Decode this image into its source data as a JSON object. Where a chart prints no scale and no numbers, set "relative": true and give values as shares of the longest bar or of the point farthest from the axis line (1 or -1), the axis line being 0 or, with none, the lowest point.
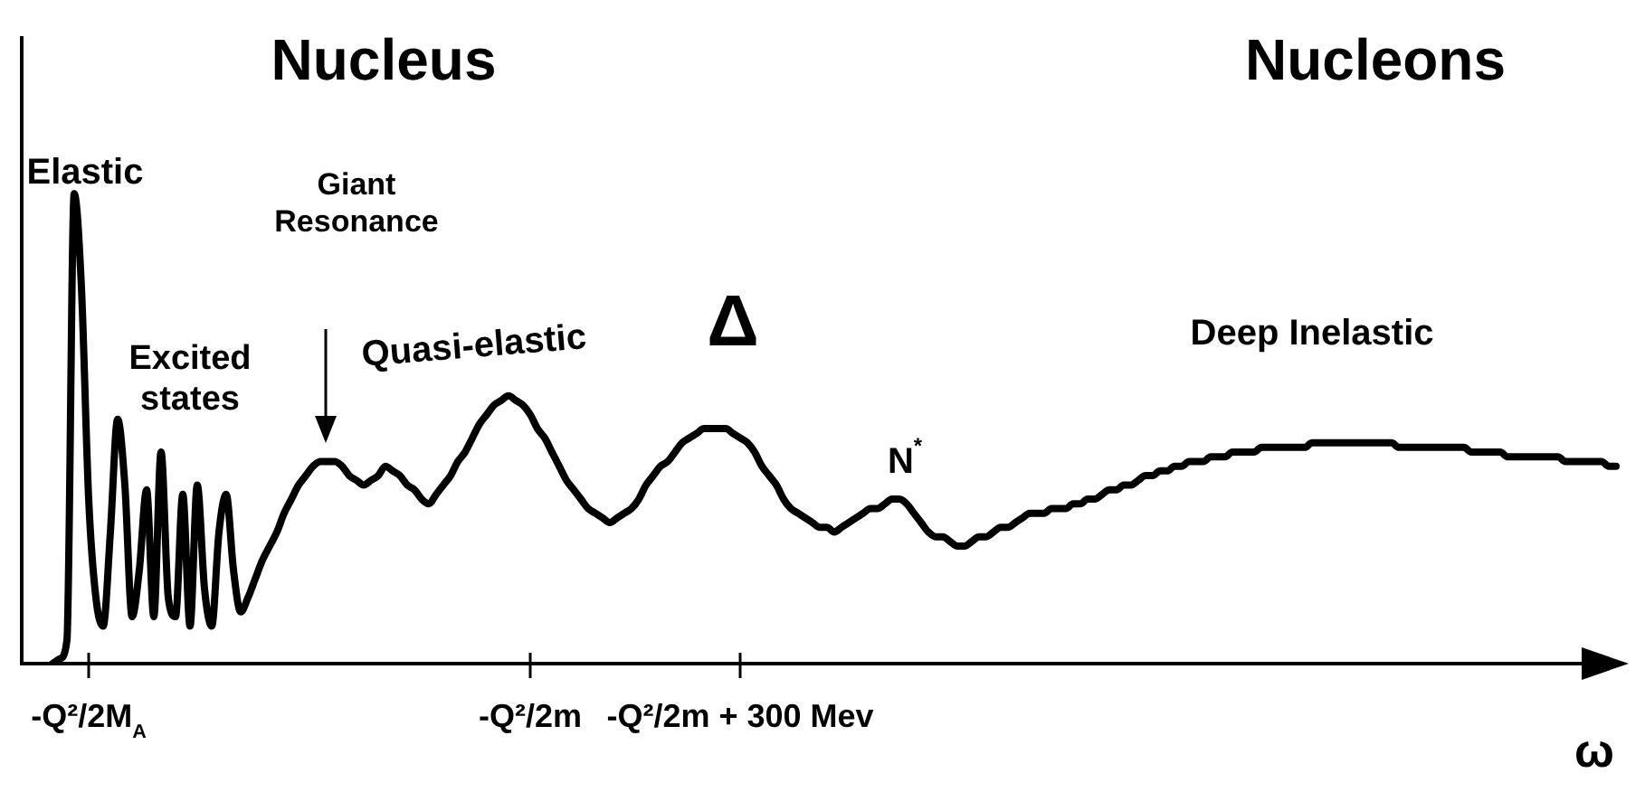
{
  "chart_data": {
    "type": "line",
    "relative": true,
    "color": "#000000",
    "marker": "none",
    "line_style": "solid",
    "tick_labels": "x",
    "xlabel": "ω",
    "categories": [
      null,
      null,
      null,
      null,
      null,
      "-Q²/2M$_{A}$",
      null,
      null,
      null,
      null,
      null,
      null,
      null,
      null,
      null,
      null,
      null,
      null,
      null,
      null,
      null,
      null,
      null,
      null,
      null,
      null,
      null,
      null,
      null,
      null,
      null,
      null,
      null,
      null,
      null,
      null,
      null,
      null,
      null,
      null,
      null,
      null,
      null,
      null,
      null,
      null,
      null,
      null,
      null,
      null,
      null,
      null,
      null,
      null,
      null,
      null,
      null,
      null,
      null,
      null,
      null,
      null,
      null,
      null,
      null,
      null,
      "-Q²/2m",
      null,
      null,
      null,
      null,
      null,
      null,
      null,
      null,
      null,
      null,
      null,
      null,
      null,
      null,
      null,
      null,
      null,
      null,
      null,
      null,
      null,
      null,
      null,
      null,
      null,
      null,
      null,
      null,
      "-Q²/2m + 300 Mev",
      null,
      null,
      null,
      null,
      null,
      null,
      null,
      null,
      null,
      null,
      null,
      null,
      null,
      null,
      null,
      null,
      null,
      null,
      null,
      null,
      null,
      null,
      null,
      null,
      null,
      null,
      null,
      null,
      null,
      null,
      null,
      null,
      null,
      null,
      null,
      null,
      null,
      null,
      null,
      null,
      null,
      null,
      null,
      null,
      null,
      null,
      null,
      null,
      null,
      null,
      null,
      null,
      null,
      null,
      null,
      null,
      null,
      null,
      null,
      null,
      null,
      null,
      null,
      null,
      null,
      null,
      null,
      null,
      null,
      null,
      null,
      null,
      null,
      null,
      null,
      null,
      null,
      null,
      null,
      null,
      null,
      null,
      null,
      null,
      null,
      null,
      null,
      null,
      null,
      null,
      null,
      null,
      null,
      null,
      null,
      null,
      null,
      null,
      null,
      null,
      null,
      null,
      null,
      null,
      null,
      null,
      null,
      null,
      null,
      null,
      null,
      null,
      null,
      null,
      null,
      null,
      null,
      null,
      null,
      null,
      null
    ],
    "values": [
      0,
      0.01,
      0.05,
      1,
      0.8,
      0.35,
      0.14,
      0.08,
      0.28,
      0.52,
      0.38,
      0.1,
      0.2,
      0.37,
      0.1,
      0.45,
      0.14,
      0.1,
      0.36,
      0.08,
      0.38,
      0.16,
      0.08,
      0.28,
      0.36,
      0.2,
      0.11,
      0.14,
      0.18,
      0.22,
      0.25,
      0.28,
      0.32,
      0.35,
      0.38,
      0.4,
      0.42,
      0.43,
      0.43,
      0.43,
      0.42,
      0.4,
      0.39,
      0.38,
      0.39,
      0.4,
      0.42,
      0.41,
      0.4,
      0.38,
      0.37,
      0.35,
      0.34,
      0.36,
      0.38,
      0.4,
      0.43,
      0.45,
      0.48,
      0.51,
      0.53,
      0.55,
      0.56,
      0.57,
      0.56,
      0.55,
      0.53,
      0.5,
      0.48,
      0.45,
      0.42,
      0.39,
      0.37,
      0.35,
      0.33,
      0.32,
      0.31,
      0.3,
      0.31,
      0.32,
      0.33,
      0.35,
      0.38,
      0.4,
      0.42,
      0.43,
      0.45,
      0.47,
      0.48,
      0.49,
      0.5,
      0.5,
      0.5,
      0.5,
      0.49,
      0.48,
      0.47,
      0.45,
      0.42,
      0.4,
      0.38,
      0.35,
      0.33,
      0.32,
      0.31,
      0.3,
      0.29,
      0.29,
      0.28,
      0.29,
      0.3,
      0.31,
      0.32,
      0.33,
      0.33,
      0.34,
      0.35,
      0.35,
      0.34,
      0.32,
      0.3,
      0.28,
      0.27,
      0.27,
      0.26,
      0.25,
      0.25,
      0.26,
      0.27,
      0.27,
      0.28,
      0.29,
      0.29,
      0.3,
      0.31,
      0.32,
      0.32,
      0.32,
      0.33,
      0.33,
      0.33,
      0.34,
      0.34,
      0.35,
      0.35,
      0.36,
      0.37,
      0.37,
      0.38,
      0.38,
      0.39,
      0.4,
      0.4,
      0.41,
      0.41,
      0.42,
      0.42,
      0.43,
      0.43,
      0.43,
      0.44,
      0.44,
      0.44,
      0.45,
      0.45,
      0.45,
      0.45,
      0.46,
      0.46,
      0.46,
      0.46,
      0.46,
      0.46,
      0.46,
      0.47,
      0.47,
      0.47,
      0.47,
      0.47,
      0.47,
      0.47,
      0.47,
      0.47,
      0.47,
      0.47,
      0.47,
      0.46,
      0.46,
      0.46,
      0.46,
      0.46,
      0.46,
      0.46,
      0.46,
      0.46,
      0.46,
      0.45,
      0.45,
      0.45,
      0.45,
      0.45,
      0.44,
      0.44,
      0.44,
      0.44,
      0.44,
      0.44,
      0.44,
      0.44,
      0.43,
      0.43,
      0.43,
      0.43,
      0.43,
      0.43,
      0.42,
      0.42
    ],
    "annotations": [
      "Nucleus",
      "Nucleons",
      "Elastic",
      "Excited\nstates",
      "Giant\nResonance",
      "Quasi-elastic",
      "Δ",
      "N$^{*}$",
      "Deep Inelastic"
    ]
  }
}
